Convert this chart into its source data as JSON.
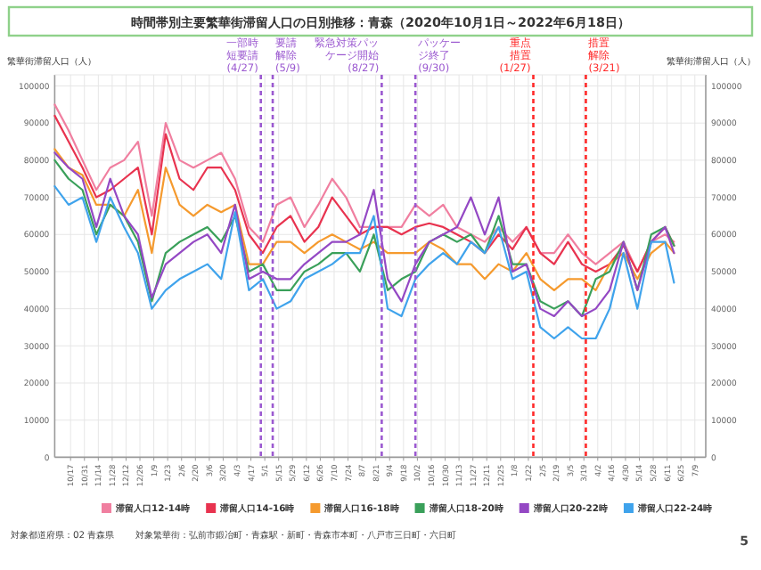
{
  "chart_data": {
    "type": "line",
    "title": "時間帯別主要繁華街滞留人口の日別推移：青森（2020年10月1日～2022年6月18日）",
    "ylabel": "繁華街滞留人口（人）",
    "y2label": "繁華街滞留人口（人）",
    "x": [
      "2020-10-01",
      "2020-10-15",
      "2020-10-29",
      "2020-11-12",
      "2020-11-26",
      "2020-12-10",
      "2020-12-24",
      "2021-01-07",
      "2021-01-21",
      "2021-02-04",
      "2021-02-18",
      "2021-03-04",
      "2021-03-18",
      "2021-04-01",
      "2021-04-15",
      "2021-04-29",
      "2021-05-13",
      "2021-05-27",
      "2021-06-10",
      "2021-06-24",
      "2021-07-08",
      "2021-07-22",
      "2021-08-05",
      "2021-08-19",
      "2021-09-02",
      "2021-09-16",
      "2021-09-30",
      "2021-10-14",
      "2021-10-28",
      "2021-11-11",
      "2021-11-25",
      "2021-12-09",
      "2021-12-23",
      "2022-01-06",
      "2022-01-20",
      "2022-02-03",
      "2022-02-17",
      "2022-03-03",
      "2022-03-17",
      "2022-03-31",
      "2022-04-14",
      "2022-04-28",
      "2022-05-12",
      "2022-05-26",
      "2022-06-09",
      "2022-06-18"
    ],
    "series": [
      {
        "name": "滞留人口12-14時",
        "color": "#f07fa0",
        "values": [
          95000,
          88000,
          80000,
          72000,
          78000,
          80000,
          85000,
          65000,
          90000,
          80000,
          78000,
          80000,
          82000,
          75000,
          62000,
          58000,
          68000,
          70000,
          62000,
          68000,
          75000,
          70000,
          62000,
          62000,
          62000,
          62000,
          68000,
          65000,
          68000,
          62000,
          60000,
          58000,
          62000,
          58000,
          62000,
          55000,
          55000,
          60000,
          55000,
          52000,
          55000,
          58000,
          50000,
          58000,
          60000,
          58000
        ]
      },
      {
        "name": "滞留人口14-16時",
        "color": "#e8334f",
        "values": [
          92000,
          85000,
          78000,
          70000,
          72000,
          75000,
          78000,
          60000,
          87000,
          75000,
          72000,
          78000,
          78000,
          72000,
          60000,
          55000,
          62000,
          65000,
          58000,
          62000,
          70000,
          65000,
          60000,
          62000,
          62000,
          60000,
          62000,
          63000,
          62000,
          60000,
          58000,
          55000,
          60000,
          56000,
          62000,
          55000,
          52000,
          58000,
          52000,
          50000,
          52000,
          57000,
          50000,
          58000,
          62000,
          57000
        ]
      },
      {
        "name": "滞留人口16-18時",
        "color": "#f59a2e",
        "values": [
          83000,
          78000,
          76000,
          68000,
          68000,
          65000,
          72000,
          55000,
          78000,
          68000,
          65000,
          68000,
          66000,
          68000,
          52000,
          52000,
          58000,
          58000,
          55000,
          58000,
          60000,
          58000,
          56000,
          58000,
          55000,
          55000,
          55000,
          58000,
          56000,
          52000,
          52000,
          48000,
          52000,
          50000,
          55000,
          48000,
          45000,
          48000,
          48000,
          45000,
          52000,
          55000,
          48000,
          55000,
          58000,
          55000
        ]
      },
      {
        "name": "滞留人口18-20時",
        "color": "#3aa05a",
        "values": [
          80000,
          75000,
          72000,
          60000,
          68000,
          65000,
          58000,
          42000,
          55000,
          58000,
          60000,
          62000,
          58000,
          65000,
          50000,
          52000,
          45000,
          45000,
          50000,
          52000,
          55000,
          55000,
          50000,
          60000,
          45000,
          48000,
          50000,
          58000,
          60000,
          58000,
          60000,
          55000,
          65000,
          52000,
          52000,
          42000,
          40000,
          42000,
          38000,
          48000,
          50000,
          58000,
          45000,
          60000,
          62000,
          57000
        ]
      },
      {
        "name": "滞留人口20-22時",
        "color": "#9448c4",
        "values": [
          82000,
          78000,
          75000,
          62000,
          75000,
          65000,
          60000,
          43000,
          52000,
          55000,
          58000,
          60000,
          55000,
          68000,
          48000,
          50000,
          48000,
          48000,
          52000,
          55000,
          58000,
          58000,
          60000,
          72000,
          48000,
          42000,
          52000,
          58000,
          60000,
          62000,
          70000,
          60000,
          70000,
          50000,
          52000,
          40000,
          38000,
          42000,
          38000,
          40000,
          45000,
          58000,
          45000,
          58000,
          62000,
          55000
        ]
      },
      {
        "name": "滞留人口22-24時",
        "color": "#3fa3ec",
        "values": [
          73000,
          68000,
          70000,
          58000,
          70000,
          62000,
          55000,
          40000,
          45000,
          48000,
          50000,
          52000,
          48000,
          66000,
          45000,
          48000,
          40000,
          42000,
          48000,
          50000,
          52000,
          55000,
          55000,
          65000,
          40000,
          38000,
          48000,
          52000,
          55000,
          52000,
          58000,
          55000,
          62000,
          48000,
          50000,
          35000,
          32000,
          35000,
          32000,
          32000,
          40000,
          55000,
          40000,
          58000,
          58000,
          47000
        ]
      }
    ],
    "xlim": [
      "2020-10-01",
      "2022-07-20"
    ],
    "xticks": [
      {
        "value": "2020-10-17",
        "label": "10/17"
      },
      {
        "value": "2020-10-31",
        "label": "10/31"
      },
      {
        "value": "2020-11-14",
        "label": "11/14"
      },
      {
        "value": "2020-11-28",
        "label": "11/28"
      },
      {
        "value": "2020-12-12",
        "label": "12/12"
      },
      {
        "value": "2020-12-26",
        "label": "12/26"
      },
      {
        "value": "2021-01-09",
        "label": "1/9"
      },
      {
        "value": "2021-01-23",
        "label": "1/23"
      },
      {
        "value": "2021-02-06",
        "label": "2/6"
      },
      {
        "value": "2021-02-20",
        "label": "2/20"
      },
      {
        "value": "2021-03-06",
        "label": "3/6"
      },
      {
        "value": "2021-03-20",
        "label": "3/20"
      },
      {
        "value": "2021-04-03",
        "label": "4/3"
      },
      {
        "value": "2021-04-17",
        "label": "4/17"
      },
      {
        "value": "2021-05-01",
        "label": "5/1"
      },
      {
        "value": "2021-05-15",
        "label": "5/15"
      },
      {
        "value": "2021-05-29",
        "label": "5/29"
      },
      {
        "value": "2021-06-12",
        "label": "6/12"
      },
      {
        "value": "2021-06-26",
        "label": "6/26"
      },
      {
        "value": "2021-07-10",
        "label": "7/10"
      },
      {
        "value": "2021-07-24",
        "label": "7/24"
      },
      {
        "value": "2021-08-07",
        "label": "8/7"
      },
      {
        "value": "2021-08-21",
        "label": "8/21"
      },
      {
        "value": "2021-09-04",
        "label": "9/4"
      },
      {
        "value": "2021-09-18",
        "label": "9/18"
      },
      {
        "value": "2021-10-02",
        "label": "10/2"
      },
      {
        "value": "2021-10-16",
        "label": "10/16"
      },
      {
        "value": "2021-10-30",
        "label": "10/30"
      },
      {
        "value": "2021-11-13",
        "label": "11/13"
      },
      {
        "value": "2021-11-27",
        "label": "11/27"
      },
      {
        "value": "2021-12-11",
        "label": "12/11"
      },
      {
        "value": "2021-12-25",
        "label": "12/25"
      },
      {
        "value": "2022-01-08",
        "label": "1/8"
      },
      {
        "value": "2022-01-22",
        "label": "1/22"
      },
      {
        "value": "2022-02-05",
        "label": "2/5"
      },
      {
        "value": "2022-02-19",
        "label": "2/19"
      },
      {
        "value": "2022-03-05",
        "label": "3/5"
      },
      {
        "value": "2022-03-19",
        "label": "3/19"
      },
      {
        "value": "2022-04-02",
        "label": "4/2"
      },
      {
        "value": "2022-04-16",
        "label": "4/16"
      },
      {
        "value": "2022-04-30",
        "label": "4/30"
      },
      {
        "value": "2022-05-14",
        "label": "5/14"
      },
      {
        "value": "2022-05-28",
        "label": "5/28"
      },
      {
        "value": "2022-06-11",
        "label": "6/11"
      },
      {
        "value": "2022-06-25",
        "label": "6/25"
      },
      {
        "value": "2022-07-09",
        "label": "7/9"
      }
    ],
    "ylim": [
      0,
      103000
    ],
    "yticks": [
      0,
      10000,
      20000,
      30000,
      40000,
      50000,
      60000,
      70000,
      80000,
      90000,
      100000
    ],
    "y2lim": [
      0,
      103000
    ],
    "y2ticks": [
      0,
      10000,
      20000,
      30000,
      40000,
      50000,
      60000,
      70000,
      80000,
      90000,
      100000
    ],
    "ref_lines": [
      {
        "axis": "x",
        "value": "2021-04-27",
        "label": "一部時短要請(4/27)",
        "color": "#9b59d0",
        "line_style": "dashed"
      },
      {
        "axis": "x",
        "value": "2021-05-09",
        "label": "要請解除(5/9)",
        "color": "#9b59d0",
        "line_style": "dashed"
      },
      {
        "axis": "x",
        "value": "2021-08-27",
        "label": "緊急対策パッケージ開始(8/27)",
        "color": "#9b59d0",
        "line_style": "dashed"
      },
      {
        "axis": "x",
        "value": "2021-09-30",
        "label": "パッケージ終了(9/30)",
        "color": "#9b59d0",
        "line_style": "dashed"
      },
      {
        "axis": "x",
        "value": "2022-01-27",
        "label": "重点措置(1/27)",
        "color": "#ff2a2a",
        "line_style": "dashed"
      },
      {
        "axis": "x",
        "value": "2022-03-21",
        "label": "措置解除(3/21)",
        "color": "#ff2a2a",
        "line_style": "dashed"
      }
    ],
    "grid": true,
    "legend": "bottom",
    "annotations": [
      "対象都道府県：02 青森県",
      "対象繁華街：弘前市鍛冶町・青森駅・新町・青森市本町・八戸市三日町・六日町",
      "5"
    ]
  }
}
